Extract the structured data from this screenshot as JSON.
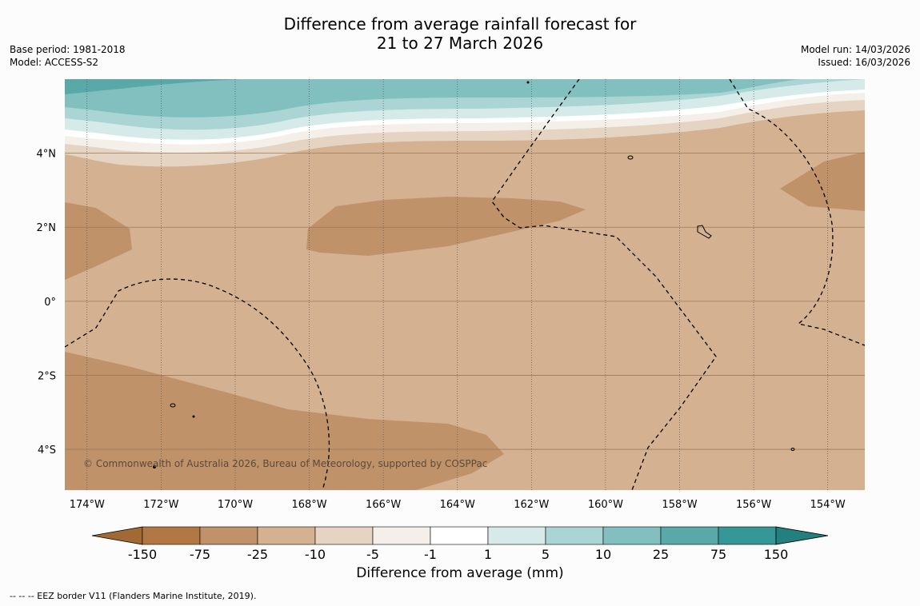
{
  "header": {
    "title_line1": "Difference from average rainfall forecast for",
    "title_line2": "21 to 27 March 2026",
    "base_period": "Base period: 1981-2018",
    "model": "Model: ACCESS-S2",
    "model_run": "Model run: 14/03/2026",
    "issued": "Issued: 16/03/2026"
  },
  "map": {
    "copyright": "© Commonwealth of Australia 2026, Bureau of Meteorology, supported by COSPPac",
    "lat_labels": [
      "4°N",
      "2°N",
      "0°",
      "2°S",
      "4°S"
    ],
    "lat_values": [
      4,
      2,
      0,
      -2,
      -4
    ],
    "lon_labels": [
      "174°W",
      "172°W",
      "170°W",
      "168°W",
      "166°W",
      "164°W",
      "162°W",
      "160°W",
      "158°W",
      "156°W",
      "154°W"
    ],
    "lon_values": [
      -174,
      -172,
      -170,
      -168,
      -166,
      -164,
      -162,
      -160,
      -158,
      -156,
      -154
    ],
    "extent": {
      "lon_min": -174.6,
      "lon_max": -153.0,
      "lat_min": -5.1,
      "lat_max": 6.0
    }
  },
  "legend": {
    "title": "Difference from average (mm)",
    "ticks": [
      "-150",
      "-75",
      "-25",
      "-10",
      "-5",
      "-1",
      "1",
      "5",
      "10",
      "25",
      "75",
      "150"
    ],
    "colors": [
      "#a16a35",
      "#b27843",
      "#c0926a",
      "#d4b190",
      "#e6d4c2",
      "#f5efe9",
      "#ffffff",
      "#d6ebe9",
      "#abd5d4",
      "#81c0be",
      "#59a9a9",
      "#359896",
      "#23807e"
    ]
  },
  "footnote": "--  --  -- EEZ border V11 (Flanders Marine Institute, 2019)."
}
